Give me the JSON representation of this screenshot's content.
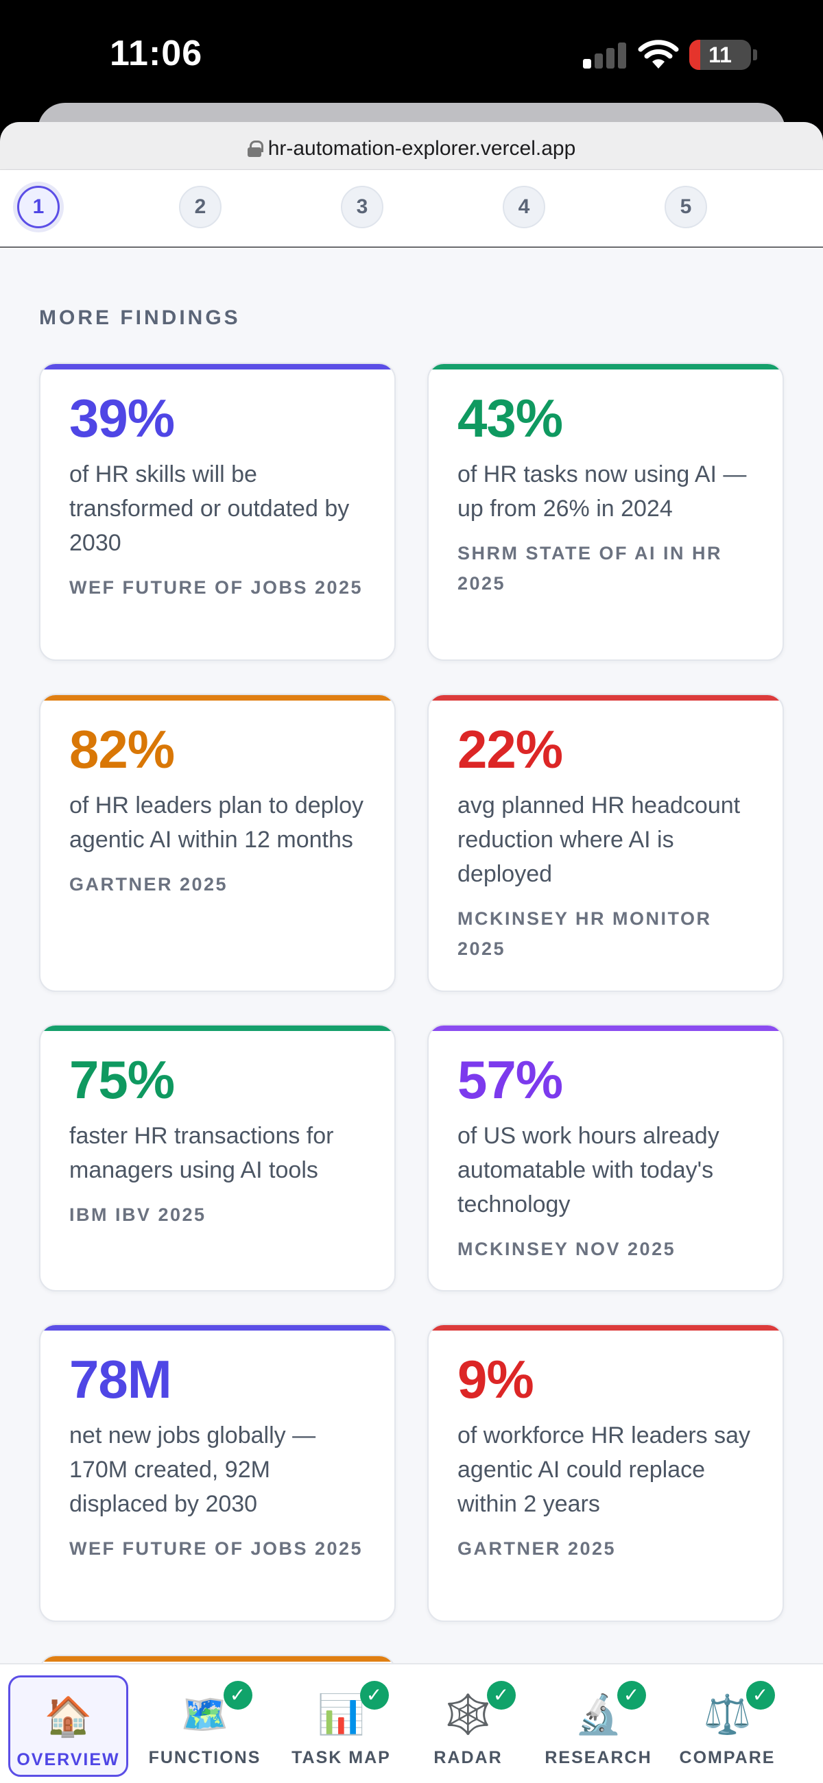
{
  "status_bar": {
    "time": "11:06",
    "battery_level": "11",
    "signal_bars_on": 1,
    "signal_bars_total": 4
  },
  "browser": {
    "url": "hr-automation-explorer.vercel.app"
  },
  "stepper": {
    "steps": [
      "1",
      "2",
      "3",
      "4",
      "5"
    ],
    "active_index": 0
  },
  "main": {
    "section_title": "MORE FINDINGS",
    "cards": [
      {
        "stat": "39%",
        "description": "of HR skills will be transformed or outdated by 2030",
        "source": "WEF FUTURE OF JOBS 2025",
        "accent": "#5b4ee6",
        "stat_color": "#4f46e5"
      },
      {
        "stat": "43%",
        "description": "of HR tasks now using AI — up from 26% in 2024",
        "source": "SHRM STATE OF AI IN HR 2025",
        "accent": "#15a06b",
        "stat_color": "#0f9960"
      },
      {
        "stat": "82%",
        "description": "of HR leaders plan to deploy agentic AI within 12 months",
        "source": "GARTNER 2025",
        "accent": "#e07f12",
        "stat_color": "#d97706"
      },
      {
        "stat": "22%",
        "description": "avg planned HR headcount reduction where AI is deployed",
        "source": "MCKINSEY HR MONITOR 2025",
        "accent": "#dc3b3b",
        "stat_color": "#dc2626"
      },
      {
        "stat": "75%",
        "description": "faster HR transactions for managers using AI tools",
        "source": "IBM IBV 2025",
        "accent": "#15a06b",
        "stat_color": "#0f9960"
      },
      {
        "stat": "57%",
        "description": "of US work hours already automatable with today's technology",
        "source": "MCKINSEY NOV 2025",
        "accent": "#8b4cf0",
        "stat_color": "#7c3aed"
      },
      {
        "stat": "78M",
        "description": "net new jobs globally — 170M created, 92M displaced by 2030",
        "source": "WEF FUTURE OF JOBS 2025",
        "accent": "#5b4ee6",
        "stat_color": "#4f46e5"
      },
      {
        "stat": "9%",
        "description": "of workforce HR leaders say agentic AI could replace within 2 years",
        "source": "GARTNER 2025",
        "accent": "#dc3b3b",
        "stat_color": "#dc2626"
      }
    ],
    "partial_card_accent": "#e07f12"
  },
  "bottom_nav": {
    "items": [
      {
        "label": "OVERVIEW",
        "icon": "house-icon",
        "glyph": "🏠",
        "checked": false,
        "active": true
      },
      {
        "label": "FUNCTIONS",
        "icon": "map-icon",
        "glyph": "🗺️",
        "checked": true,
        "active": false
      },
      {
        "label": "TASK MAP",
        "icon": "bar-chart-icon",
        "glyph": "📊",
        "checked": true,
        "active": false
      },
      {
        "label": "RADAR",
        "icon": "spider-web-icon",
        "glyph": "🕸️",
        "checked": true,
        "active": false
      },
      {
        "label": "RESEARCH",
        "icon": "microscope-icon",
        "glyph": "🔬",
        "checked": true,
        "active": false
      },
      {
        "label": "COMPARE",
        "icon": "scales-icon",
        "glyph": "⚖️",
        "checked": true,
        "active": false
      }
    ],
    "check_glyph": "✓"
  }
}
